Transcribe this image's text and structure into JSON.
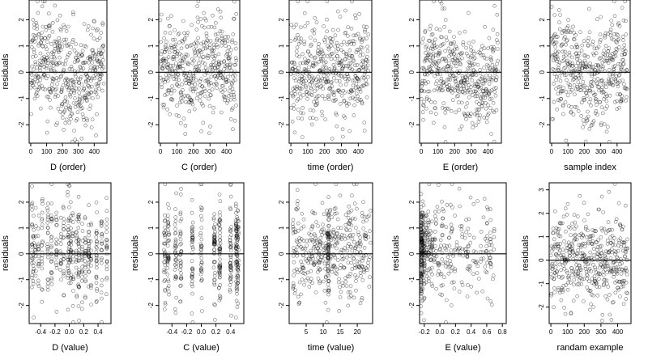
{
  "figure": {
    "background": "#ffffff",
    "ink": "#000000"
  },
  "chart_data": [
    {
      "id": "d-order",
      "type": "scatter",
      "xlabel": "D (order)",
      "ylabel": "residuals",
      "xlim": [
        -10,
        480
      ],
      "ylim": [
        -2.7,
        2.75
      ],
      "xticks": [
        0,
        100,
        200,
        300,
        400
      ],
      "xtick_labels": [
        "0",
        "100",
        "200",
        "300",
        "400"
      ],
      "yticks": [
        -2,
        -1,
        0,
        1,
        2
      ],
      "ytick_labels": [
        "-2",
        "-1",
        "0",
        "1",
        "2"
      ],
      "hline": 0,
      "gen": {
        "n": 460,
        "seed": 11,
        "mode": "index",
        "xmin": 0,
        "xmax": 460,
        "sd": 0.95,
        "trend": [
          [
            0,
            0.5
          ],
          [
            80,
            0.6
          ],
          [
            150,
            0
          ],
          [
            250,
            -0.5
          ],
          [
            350,
            -0.3
          ],
          [
            420,
            0
          ],
          [
            460,
            0.3
          ]
        ]
      }
    },
    {
      "id": "c-order",
      "type": "scatter",
      "xlabel": "C (order)",
      "ylabel": "residuals",
      "xlim": [
        -10,
        480
      ],
      "ylim": [
        -2.7,
        2.75
      ],
      "xticks": [
        0,
        100,
        200,
        300,
        400
      ],
      "xtick_labels": [
        "0",
        "100",
        "200",
        "300",
        "400"
      ],
      "yticks": [
        -2,
        -1,
        0,
        1,
        2
      ],
      "ytick_labels": [
        "-2",
        "-1",
        "0",
        "1",
        "2"
      ],
      "hline": 0,
      "gen": {
        "n": 460,
        "seed": 23,
        "mode": "index",
        "xmin": 0,
        "xmax": 460,
        "sd": 0.95,
        "trend": [
          [
            0,
            0.1
          ],
          [
            460,
            0.1
          ]
        ]
      }
    },
    {
      "id": "time-order",
      "type": "scatter",
      "xlabel": "time (order)",
      "ylabel": "residuals",
      "xlim": [
        -10,
        480
      ],
      "ylim": [
        -2.7,
        2.75
      ],
      "xticks": [
        0,
        100,
        200,
        300,
        400
      ],
      "xtick_labels": [
        "0",
        "100",
        "200",
        "300",
        "400"
      ],
      "yticks": [
        -2,
        -1,
        0,
        1,
        2
      ],
      "ytick_labels": [
        "-2",
        "-1",
        "0",
        "1",
        "2"
      ],
      "hline": 0,
      "gen": {
        "n": 460,
        "seed": 37,
        "mode": "index",
        "xmin": 0,
        "xmax": 460,
        "sd": 0.95,
        "trend": [
          [
            0,
            0.1
          ],
          [
            460,
            0.1
          ]
        ]
      }
    },
    {
      "id": "e-order",
      "type": "scatter",
      "xlabel": "E (order)",
      "ylabel": "residuals",
      "xlim": [
        -10,
        480
      ],
      "ylim": [
        -2.7,
        2.75
      ],
      "xticks": [
        0,
        100,
        200,
        300,
        400
      ],
      "xtick_labels": [
        "0",
        "100",
        "200",
        "300",
        "400"
      ],
      "yticks": [
        -2,
        -1,
        0,
        1,
        2
      ],
      "ytick_labels": [
        "-2",
        "-1",
        "0",
        "1",
        "2"
      ],
      "hline": 0,
      "gen": {
        "n": 460,
        "seed": 41,
        "mode": "index",
        "xmin": 0,
        "xmax": 460,
        "sd": 0.9,
        "trend": [
          [
            0,
            -0.2
          ],
          [
            60,
            0.4
          ],
          [
            140,
            0.3
          ],
          [
            250,
            -0.3
          ],
          [
            380,
            -0.4
          ],
          [
            460,
            0
          ]
        ]
      }
    },
    {
      "id": "sample-index",
      "type": "scatter",
      "xlabel": "sample index",
      "ylabel": "residuals",
      "xlim": [
        -10,
        480
      ],
      "ylim": [
        -2.7,
        2.75
      ],
      "xticks": [
        0,
        100,
        200,
        300,
        400
      ],
      "xtick_labels": [
        "0",
        "100",
        "200",
        "300",
        "400"
      ],
      "yticks": [
        -2,
        -1,
        0,
        1,
        2
      ],
      "ytick_labels": [
        "-2",
        "-1",
        "0",
        "1",
        "2"
      ],
      "hline": 0,
      "gen": {
        "n": 460,
        "seed": 53,
        "mode": "index",
        "xmin": 0,
        "xmax": 460,
        "sd": 0.95,
        "trend": [
          [
            0,
            0.3
          ],
          [
            150,
            0
          ],
          [
            300,
            -0.2
          ],
          [
            460,
            0.4
          ]
        ]
      }
    },
    {
      "id": "d-value",
      "type": "scatter",
      "xlabel": "D (value)",
      "ylabel": "residuals",
      "xlim": [
        -0.56,
        0.58
      ],
      "ylim": [
        -2.7,
        2.75
      ],
      "xticks": [
        -0.4,
        -0.2,
        0,
        0.2,
        0.4
      ],
      "xtick_labels": [
        "-0.4",
        "-0.2",
        "0.0",
        "0.2",
        "0.4"
      ],
      "yticks": [
        -2,
        -1,
        0,
        1,
        2
      ],
      "ytick_labels": [
        "-2",
        "-1",
        "0",
        "1",
        "2"
      ],
      "hline": 0,
      "gen": {
        "n": 460,
        "seed": 61,
        "mode": "columns",
        "columns": [
          -0.52,
          -0.5,
          -0.47,
          -0.43,
          -0.38,
          -0.3,
          -0.25,
          -0.18,
          -0.12,
          -0.08,
          -0.02,
          0.0,
          0.02,
          0.05,
          0.1,
          0.13,
          0.18,
          0.22,
          0.27,
          0.3,
          0.38,
          0.45,
          0.52
        ],
        "jitter": 0.006,
        "sd": 0.95,
        "trend": [
          [
            -0.55,
            -0.3
          ],
          [
            -0.3,
            0.4
          ],
          [
            0,
            0.2
          ],
          [
            0.2,
            -0.3
          ],
          [
            0.55,
            0.2
          ]
        ]
      }
    },
    {
      "id": "c-value",
      "type": "scatter",
      "xlabel": "C (value)",
      "ylabel": "residuals",
      "xlim": [
        -0.58,
        0.58
      ],
      "ylim": [
        -2.7,
        2.75
      ],
      "xticks": [
        -0.4,
        -0.2,
        0,
        0.2,
        0.4
      ],
      "xtick_labels": [
        "-0.4",
        "-0.2",
        "0.0",
        "0.2",
        "0.4"
      ],
      "yticks": [
        -2,
        -1,
        0,
        1,
        2
      ],
      "ytick_labels": [
        "-2",
        "-1",
        "0",
        "1",
        "2"
      ],
      "hline": 0,
      "gen": {
        "n": 460,
        "seed": 67,
        "mode": "columns",
        "columns": [
          -0.5,
          -0.45,
          -0.35,
          -0.28,
          -0.12,
          0.0,
          0.18,
          0.25,
          0.4,
          0.48,
          0.5
        ],
        "jitter": 0.01,
        "sd": 0.95,
        "trend": [
          [
            -0.6,
            0.1
          ],
          [
            0.6,
            0.1
          ]
        ]
      }
    },
    {
      "id": "time-value",
      "type": "scatter",
      "xlabel": "time (value)",
      "ylabel": "residuals",
      "xlim": [
        0,
        24.5
      ],
      "ylim": [
        -2.7,
        2.75
      ],
      "xticks": [
        5,
        10,
        15,
        20
      ],
      "xtick_labels": [
        "5",
        "10",
        "15",
        "20"
      ],
      "yticks": [
        -2,
        -1,
        0,
        1,
        2
      ],
      "ytick_labels": [
        "-2",
        "-1",
        "0",
        "1",
        "2"
      ],
      "hline": 0,
      "gen": {
        "n": 460,
        "seed": 71,
        "mode": "uniform",
        "xmin": 1,
        "xmax": 24,
        "dense": [
          [
            11.5,
            0.25,
            60
          ]
        ],
        "sd": 0.95,
        "trend": [
          [
            0,
            0.1
          ],
          [
            24,
            0.1
          ]
        ]
      }
    },
    {
      "id": "e-value",
      "type": "scatter",
      "xlabel": "E (value)",
      "ylabel": "residuals",
      "xlim": [
        -0.26,
        0.85
      ],
      "ylim": [
        -2.7,
        2.75
      ],
      "xticks": [
        -0.2,
        0,
        0.2,
        0.4,
        0.6,
        0.8
      ],
      "xtick_labels": [
        "-0.2",
        "0.0",
        "0.2",
        "0.4",
        "0.6",
        "0.8"
      ],
      "yticks": [
        -2,
        -1,
        0,
        1,
        2
      ],
      "ytick_labels": [
        "-2",
        "-1",
        "0",
        "1",
        "2"
      ],
      "hline": 0,
      "gen": {
        "n": 460,
        "seed": 79,
        "mode": "skew",
        "xmin": -0.24,
        "xmax": 0.7,
        "tail": [
          [
            0.6,
            10
          ],
          [
            0.65,
            12
          ]
        ],
        "sd": 0.95,
        "trend": [
          [
            -0.25,
            0.1
          ],
          [
            0.8,
            0.1
          ]
        ]
      }
    },
    {
      "id": "random-example",
      "type": "scatter",
      "xlabel": "randam example",
      "ylabel": "residuals",
      "xlim": [
        -10,
        480
      ],
      "ylim": [
        -2.7,
        3.3
      ],
      "xticks": [
        0,
        100,
        200,
        300,
        400
      ],
      "xtick_labels": [
        "0",
        "100",
        "200",
        "300",
        "400"
      ],
      "yticks": [
        -2,
        -1,
        0,
        1,
        2,
        3
      ],
      "ytick_labels": [
        "-2",
        "-1",
        "0",
        "1",
        "2",
        "3"
      ],
      "hline": 0,
      "gen": {
        "n": 460,
        "seed": 97,
        "mode": "index",
        "xmin": 0,
        "xmax": 460,
        "sd": 1.0,
        "trend": [
          [
            0,
            0
          ],
          [
            460,
            0
          ]
        ]
      }
    }
  ]
}
